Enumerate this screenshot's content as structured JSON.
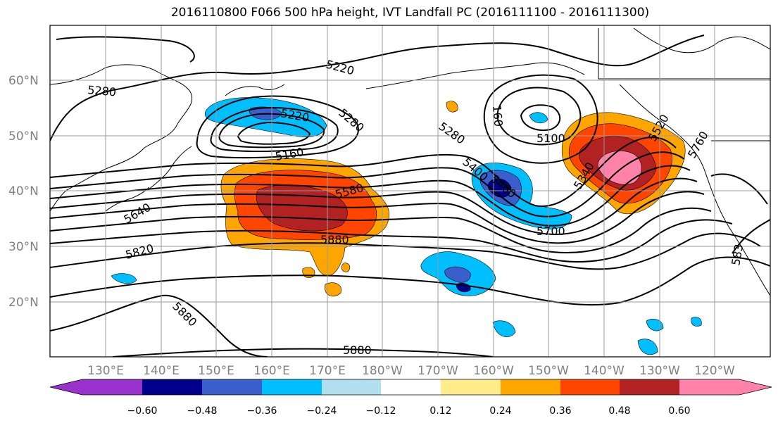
{
  "title": "2016110800 F066 500 hPa height, IVT Landfall PC (2016111100 - 2016111300)",
  "map": {
    "lat_labels": [
      "60°N",
      "50°N",
      "40°N",
      "30°N",
      "20°N"
    ],
    "lon_labels": [
      "130°E",
      "140°E",
      "150°E",
      "160°E",
      "170°E",
      "180°W",
      "170°W",
      "160°W",
      "150°W",
      "140°W",
      "130°W",
      "120°W"
    ],
    "contour_labels": [
      "5280",
      "5220",
      "5220",
      "5280",
      "5160",
      "5580",
      "5640",
      "5820",
      "5880",
      "5880",
      "5880",
      "5280",
      "5400",
      "5460",
      "5700",
      "5100",
      "160",
      "5340",
      "5520",
      "5760",
      "583"
    ],
    "colors": {
      "neg_060": "#9932CC",
      "neg_048": "#00008B",
      "neg_036": "#3A5FCD",
      "neg_024": "#00BFFF",
      "neg_012": "#B2DFEE",
      "neutral": "#FFFFFF",
      "pos_012": "#FFEC8B",
      "pos_024": "#FFA500",
      "pos_036": "#FF4500",
      "pos_048": "#B22222",
      "pos_060": "#FF82AB",
      "grid": "#9A9A9A",
      "tick_label": "#808080"
    }
  },
  "colorbar": {
    "ticks": [
      "−0.60",
      "−0.48",
      "−0.36",
      "−0.24",
      "−0.12",
      "0.12",
      "0.24",
      "0.36",
      "0.48",
      "0.60"
    ]
  }
}
